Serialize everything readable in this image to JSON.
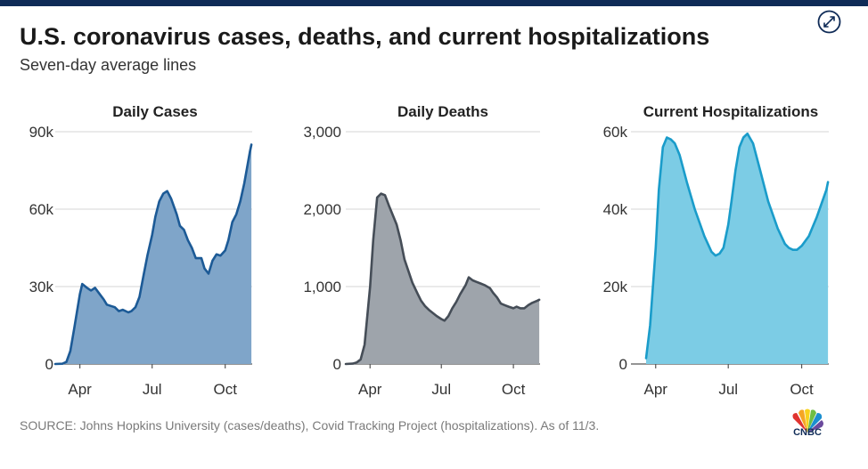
{
  "header": {
    "title": "U.S. coronavirus cases, deaths, and current hospitalizations",
    "subtitle": "Seven-day average lines"
  },
  "footer": {
    "source": "SOURCE: Johns Hopkins University (cases/deaths), Covid Tracking Project (hospitalizations). As of 11/3.",
    "logo_text": "CNBC"
  },
  "icons": {
    "expand": "expand-arrows-icon",
    "logo": "peacock-logo-icon"
  },
  "chart_data": [
    {
      "type": "area",
      "title": "Daily Cases",
      "xlabel": "",
      "ylabel": "",
      "x_ticks": [
        "Apr",
        "Jul",
        "Oct"
      ],
      "y_ticks": [
        0,
        30000,
        60000,
        90000
      ],
      "y_tick_labels": [
        "0",
        "30k",
        "60k",
        "90k"
      ],
      "ylim": [
        0,
        90000
      ],
      "grid": true,
      "color": "#1c5a96",
      "fill": "#7fa5c9",
      "x": [
        "Mar 1",
        "Mar 10",
        "Mar 15",
        "Mar 20",
        "Mar 25",
        "Apr 1",
        "Apr 4",
        "Apr 10",
        "Apr 15",
        "Apr 20",
        "Apr 25",
        "May 1",
        "May 5",
        "May 10",
        "May 15",
        "May 20",
        "May 25",
        "Jun 1",
        "Jun 5",
        "Jun 10",
        "Jun 15",
        "Jun 20",
        "Jun 25",
        "Jul 1",
        "Jul 5",
        "Jul 10",
        "Jul 15",
        "Jul 20",
        "Jul 25",
        "Aug 1",
        "Aug 5",
        "Aug 10",
        "Aug 15",
        "Aug 20",
        "Aug 25",
        "Sep 1",
        "Sep 5",
        "Sep 10",
        "Sep 15",
        "Sep 20",
        "Sep 25",
        "Oct 1",
        "Oct 5",
        "Oct 10",
        "Oct 15",
        "Oct 20",
        "Oct 25",
        "Nov 1",
        "Nov 3"
      ],
      "values": [
        0,
        100,
        800,
        5000,
        14000,
        27000,
        31000,
        29500,
        28500,
        29500,
        27500,
        25000,
        23000,
        22500,
        22000,
        20500,
        21000,
        20000,
        20500,
        22000,
        26000,
        34000,
        42000,
        50000,
        57000,
        63000,
        66000,
        67000,
        64000,
        58000,
        53500,
        52000,
        48000,
        45000,
        41000,
        41000,
        37000,
        35000,
        40000,
        42500,
        42000,
        44000,
        48000,
        55000,
        58000,
        63000,
        70000,
        82000,
        85000
      ]
    },
    {
      "type": "area",
      "title": "Daily Deaths",
      "xlabel": "",
      "ylabel": "",
      "x_ticks": [
        "Apr",
        "Jul",
        "Oct"
      ],
      "y_ticks": [
        0,
        1000,
        2000,
        3000
      ],
      "y_tick_labels": [
        "0",
        "1,000",
        "2,000",
        "3,000"
      ],
      "ylim": [
        0,
        3000
      ],
      "grid": true,
      "color": "#454d57",
      "fill": "#9ea4ab",
      "x": [
        "Mar 1",
        "Mar 10",
        "Mar 15",
        "Mar 20",
        "Mar 25",
        "Apr 1",
        "Apr 5",
        "Apr 10",
        "Apr 15",
        "Apr 20",
        "Apr 25",
        "May 1",
        "May 5",
        "May 10",
        "May 15",
        "May 20",
        "May 25",
        "Jun 1",
        "Jun 5",
        "Jun 10",
        "Jun 15",
        "Jun 20",
        "Jun 25",
        "Jul 1",
        "Jul 5",
        "Jul 10",
        "Jul 15",
        "Jul 20",
        "Jul 25",
        "Aug 1",
        "Aug 5",
        "Aug 10",
        "Aug 15",
        "Aug 20",
        "Aug 25",
        "Sep 1",
        "Sep 5",
        "Sep 10",
        "Sep 15",
        "Sep 20",
        "Sep 25",
        "Oct 1",
        "Oct 5",
        "Oct 10",
        "Oct 15",
        "Oct 20",
        "Oct 25",
        "Nov 1",
        "Nov 3"
      ],
      "values": [
        0,
        5,
        20,
        60,
        250,
        1000,
        1600,
        2150,
        2200,
        2180,
        2050,
        1900,
        1800,
        1600,
        1350,
        1200,
        1050,
        900,
        820,
        750,
        700,
        660,
        620,
        580,
        560,
        620,
        720,
        800,
        900,
        1020,
        1120,
        1080,
        1060,
        1040,
        1020,
        980,
        920,
        860,
        780,
        760,
        740,
        720,
        740,
        720,
        720,
        760,
        790,
        820,
        830
      ]
    },
    {
      "type": "area",
      "title": "Current Hospitalizations",
      "xlabel": "",
      "ylabel": "",
      "x_ticks": [
        "Apr",
        "Jul",
        "Oct"
      ],
      "y_ticks": [
        0,
        20000,
        40000,
        60000
      ],
      "y_tick_labels": [
        "0",
        "20k",
        "40k",
        "60k"
      ],
      "ylim": [
        0,
        60000
      ],
      "grid": true,
      "color": "#1a9cca",
      "fill": "#7ccce5",
      "x": [
        "Mar 20",
        "Mar 25",
        "Apr 1",
        "Apr 5",
        "Apr 10",
        "Apr 15",
        "Apr 20",
        "Apr 25",
        "May 1",
        "May 10",
        "May 20",
        "Jun 1",
        "Jun 10",
        "Jun 15",
        "Jun 20",
        "Jun 25",
        "Jul 1",
        "Jul 5",
        "Jul 10",
        "Jul 15",
        "Jul 20",
        "Jul 25",
        "Aug 1",
        "Aug 10",
        "Aug 20",
        "Sep 1",
        "Sep 10",
        "Sep 15",
        "Sep 20",
        "Sep 25",
        "Oct 1",
        "Oct 10",
        "Oct 20",
        "Nov 1",
        "Nov 3"
      ],
      "values": [
        1500,
        10000,
        30000,
        45000,
        56000,
        58500,
        58000,
        57000,
        54000,
        47000,
        40000,
        33000,
        29000,
        28000,
        28500,
        30000,
        36000,
        42000,
        50000,
        56000,
        58500,
        59500,
        57000,
        50000,
        42000,
        35000,
        31000,
        30000,
        29500,
        29500,
        30500,
        33000,
        38000,
        45000,
        47000
      ]
    }
  ]
}
